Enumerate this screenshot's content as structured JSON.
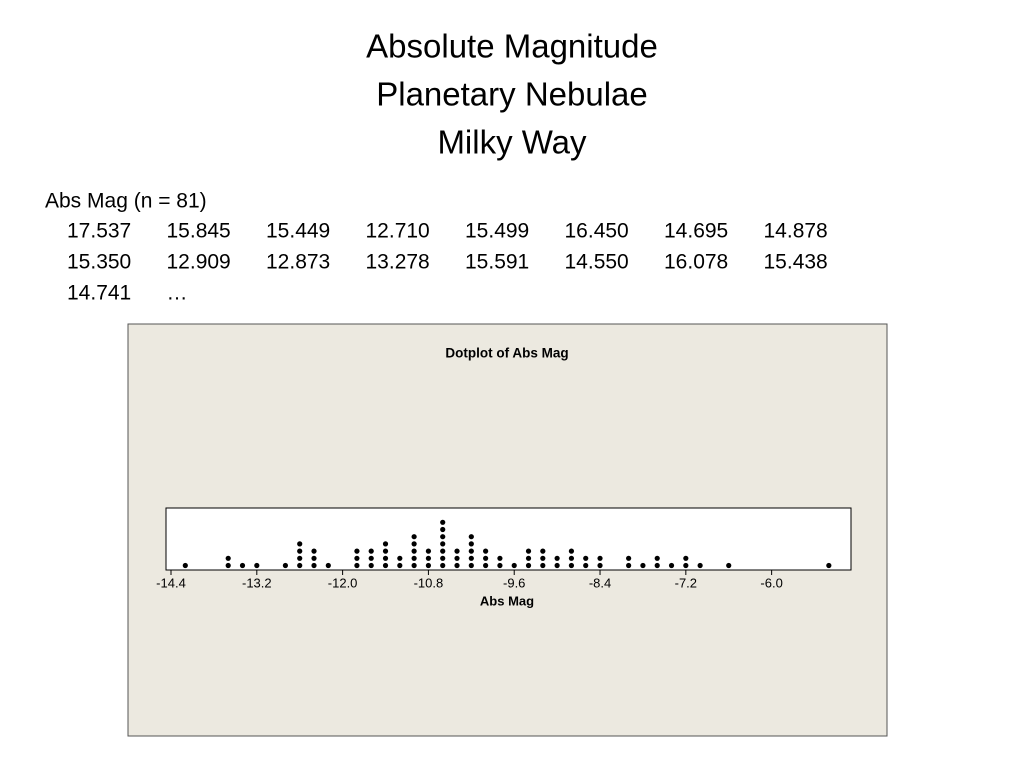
{
  "header": {
    "title_lines": [
      "Absolute Magnitude",
      "Planetary Nebulae",
      "Milky Way"
    ]
  },
  "data_listing": {
    "label": "Abs Mag (n = 81)",
    "rows": [
      [
        "17.537",
        "15.845",
        "15.449",
        "12.710",
        "15.499",
        "16.450",
        "14.695",
        "14.878"
      ],
      [
        "15.350",
        "12.909",
        "12.873",
        "13.278",
        "15.591",
        "14.550",
        "16.078",
        "15.438"
      ],
      [
        "14.741",
        "…"
      ]
    ]
  },
  "chart_data": {
    "type": "dotplot",
    "title": "Dotplot of Abs Mag",
    "x_label": "Abs Mag",
    "x": [
      -14.2,
      -13.6,
      -13.4,
      -13.2,
      -12.8,
      -12.6,
      -12.4,
      -12.2,
      -11.8,
      -11.6,
      -11.4,
      -11.2,
      -11.0,
      -10.8,
      -10.6,
      -10.4,
      -10.2,
      -10.0,
      -9.8,
      -9.6,
      -9.4,
      -9.2,
      -9.0,
      -8.8,
      -8.6,
      -8.4,
      -8.0,
      -7.8,
      -7.6,
      -7.4,
      -7.2,
      -7.0,
      -6.6,
      -5.2
    ],
    "values": [
      1,
      2,
      1,
      1,
      1,
      4,
      3,
      1,
      3,
      3,
      4,
      2,
      5,
      3,
      7,
      3,
      5,
      3,
      2,
      1,
      3,
      3,
      2,
      3,
      2,
      2,
      2,
      1,
      2,
      1,
      2,
      1,
      1,
      1
    ],
    "color": "#000000",
    "xlim": [
      -14.47,
      -4.89
    ],
    "xticks": [
      -14.4,
      -13.2,
      {
        "value": -12.0,
        "label": "-12.0"
      },
      -10.8,
      -9.6,
      -8.4,
      -7.2,
      {
        "value": -6.0,
        "label": "-6.0"
      }
    ]
  }
}
